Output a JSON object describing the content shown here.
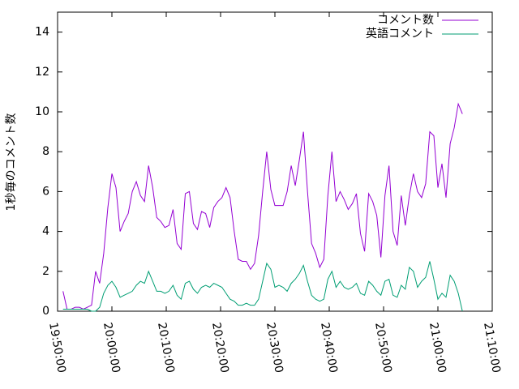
{
  "chart_data": {
    "type": "line",
    "ylabel": "1秒毎のコメント数",
    "x": [
      "19:51:00",
      "19:51:45",
      "19:52:30",
      "19:53:15",
      "19:54:00",
      "19:54:45",
      "19:55:30",
      "19:56:15",
      "19:57:00",
      "19:57:45",
      "19:58:30",
      "19:59:15",
      "20:00:00",
      "20:00:45",
      "20:01:30",
      "20:02:15",
      "20:03:00",
      "20:03:45",
      "20:04:30",
      "20:05:15",
      "20:06:00",
      "20:06:45",
      "20:07:30",
      "20:08:15",
      "20:09:00",
      "20:09:45",
      "20:10:30",
      "20:11:15",
      "20:12:00",
      "20:12:45",
      "20:13:30",
      "20:14:15",
      "20:15:00",
      "20:15:45",
      "20:16:30",
      "20:17:15",
      "20:18:00",
      "20:18:45",
      "20:19:30",
      "20:20:15",
      "20:21:00",
      "20:21:45",
      "20:22:30",
      "20:23:15",
      "20:24:00",
      "20:24:45",
      "20:25:30",
      "20:26:15",
      "20:27:00",
      "20:27:45",
      "20:28:30",
      "20:29:15",
      "20:30:00",
      "20:30:45",
      "20:31:30",
      "20:32:15",
      "20:33:00",
      "20:33:45",
      "20:34:30",
      "20:35:15",
      "20:36:00",
      "20:36:45",
      "20:37:30",
      "20:38:15",
      "20:39:00",
      "20:39:45",
      "20:40:30",
      "20:41:15",
      "20:42:00",
      "20:42:45",
      "20:43:30",
      "20:44:15",
      "20:45:00",
      "20:45:45",
      "20:46:30",
      "20:47:15",
      "20:48:00",
      "20:48:45",
      "20:49:30",
      "20:50:15",
      "20:51:00",
      "20:51:45",
      "20:52:30",
      "20:53:15",
      "20:54:00",
      "20:54:45",
      "20:55:30",
      "20:56:15",
      "20:57:00",
      "20:57:45",
      "20:58:30",
      "20:59:15",
      "21:00:00",
      "21:00:45",
      "21:01:30",
      "21:02:15",
      "21:03:00",
      "21:03:45",
      "21:04:30"
    ],
    "series": [
      {
        "name": "コメント数",
        "color": "#9400d3",
        "values": [
          1.0,
          0.1,
          0.1,
          0.2,
          0.2,
          0.1,
          0.2,
          0.3,
          2.0,
          1.4,
          2.9,
          5.2,
          6.9,
          6.2,
          4.0,
          4.5,
          4.9,
          6.0,
          6.5,
          5.8,
          5.5,
          7.3,
          6.2,
          4.7,
          4.5,
          4.2,
          4.3,
          5.1,
          3.4,
          3.1,
          5.9,
          6.0,
          4.4,
          4.1,
          5.0,
          4.9,
          4.2,
          5.2,
          5.5,
          5.7,
          6.2,
          5.7,
          4.0,
          2.6,
          2.5,
          2.5,
          2.1,
          2.4,
          3.8,
          6.0,
          8.0,
          6.1,
          5.3,
          5.3,
          5.3,
          6.0,
          7.3,
          6.3,
          7.6,
          9.0,
          6.0,
          3.4,
          2.9,
          2.2,
          2.6,
          5.8,
          8.0,
          5.5,
          6.0,
          5.6,
          5.1,
          5.4,
          5.9,
          3.9,
          3.0,
          5.9,
          5.5,
          4.8,
          2.7,
          5.8,
          7.3,
          4.0,
          3.3,
          5.8,
          4.3,
          5.8,
          6.9,
          6.0,
          5.7,
          6.4,
          9.0,
          8.8,
          6.2,
          7.4,
          5.7,
          8.4,
          9.2,
          10.4,
          9.9
        ]
      },
      {
        "name": "英語コメント",
        "color": "#009e73",
        "values": [
          0.1,
          0.1,
          0.1,
          0.1,
          0.1,
          0.1,
          0.1,
          0.0,
          0.0,
          0.2,
          0.9,
          1.3,
          1.5,
          1.2,
          0.7,
          0.8,
          0.9,
          1.0,
          1.3,
          1.5,
          1.4,
          2.0,
          1.5,
          1.0,
          1.0,
          0.9,
          1.0,
          1.3,
          0.8,
          0.6,
          1.4,
          1.5,
          1.1,
          0.9,
          1.2,
          1.3,
          1.2,
          1.4,
          1.3,
          1.2,
          0.9,
          0.6,
          0.5,
          0.3,
          0.3,
          0.4,
          0.3,
          0.3,
          0.6,
          1.5,
          2.4,
          2.1,
          1.2,
          1.3,
          1.2,
          1.0,
          1.4,
          1.6,
          1.9,
          2.3,
          1.5,
          0.8,
          0.6,
          0.5,
          0.6,
          1.6,
          2.0,
          1.2,
          1.5,
          1.2,
          1.1,
          1.2,
          1.4,
          0.9,
          0.8,
          1.5,
          1.3,
          1.0,
          0.8,
          1.5,
          1.6,
          0.8,
          0.7,
          1.3,
          1.1,
          2.2,
          2.0,
          1.2,
          1.5,
          1.7,
          2.5,
          1.6,
          0.6,
          0.9,
          0.7,
          1.8,
          1.5,
          0.9,
          0.0
        ]
      }
    ],
    "xlim": [
      "19:50:00",
      "21:10:00"
    ],
    "xticks": [
      "19:50:00",
      "20:00:00",
      "20:10:00",
      "20:20:00",
      "20:30:00",
      "20:40:00",
      "20:50:00",
      "21:00:00",
      "21:10:00"
    ],
    "ylim": [
      0,
      15
    ],
    "yticks": [
      0,
      2,
      4,
      6,
      8,
      10,
      12,
      14
    ],
    "legend": "top-right"
  }
}
